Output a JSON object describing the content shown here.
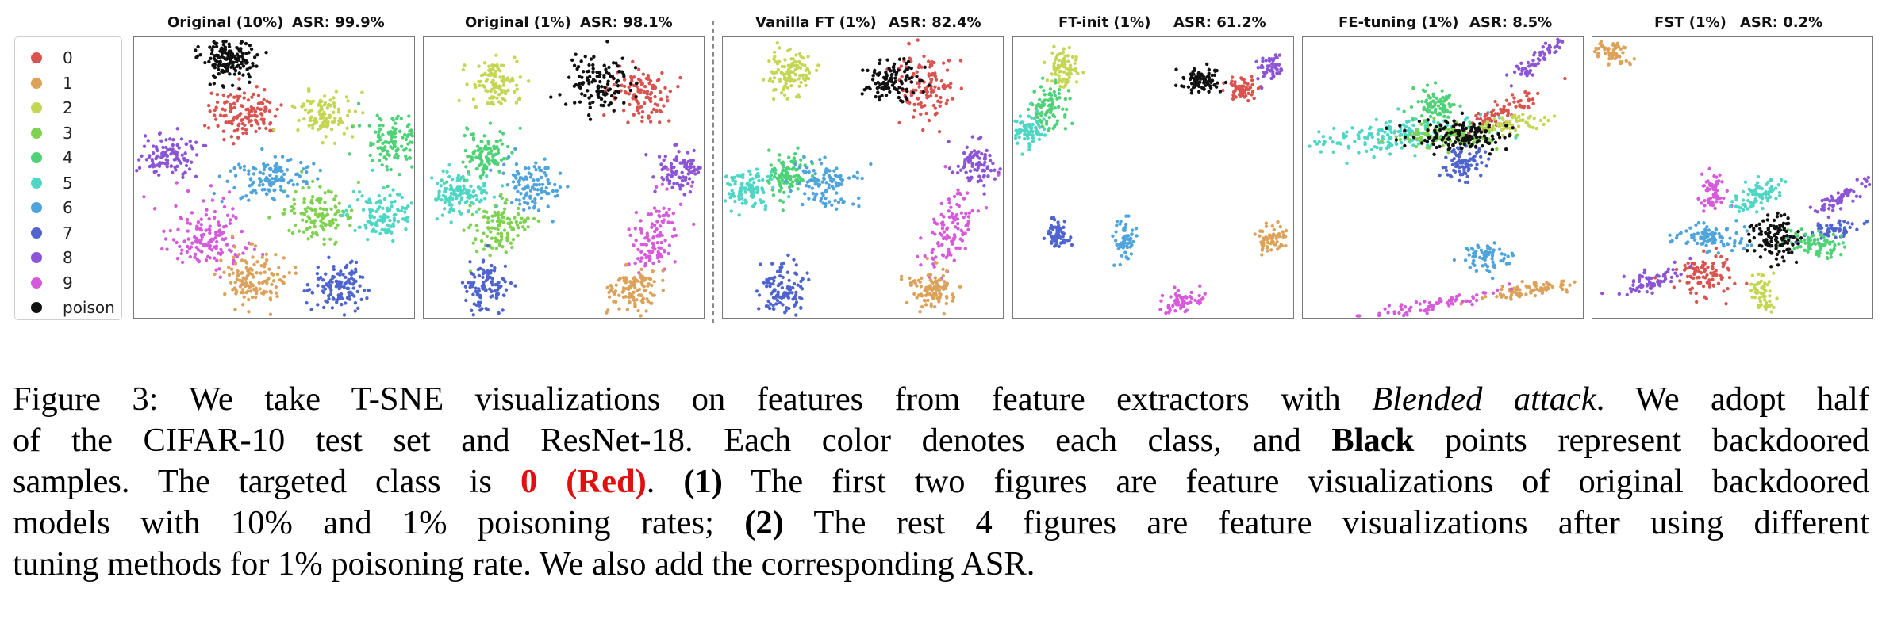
{
  "legend": {
    "items": [
      {
        "label": "0",
        "color": "#d9534f"
      },
      {
        "label": "1",
        "color": "#dca25a"
      },
      {
        "label": "2",
        "color": "#c5d654"
      },
      {
        "label": "3",
        "color": "#7fd24f"
      },
      {
        "label": "4",
        "color": "#4fd277"
      },
      {
        "label": "5",
        "color": "#4fd6c5"
      },
      {
        "label": "6",
        "color": "#4fa4dc"
      },
      {
        "label": "7",
        "color": "#4f64cf"
      },
      {
        "label": "8",
        "color": "#8c55d6"
      },
      {
        "label": "9",
        "color": "#d65ad9"
      },
      {
        "label": "poison",
        "color": "#111111"
      }
    ]
  },
  "panels": [
    {
      "title": "Original (10%)",
      "asr": "ASR: 99.9%"
    },
    {
      "title": "Original (1%)",
      "asr": "ASR: 98.1%"
    },
    {
      "title": "Vanilla FT (1%)",
      "asr": "ASR: 82.4%"
    },
    {
      "title": "FT-init (1%)",
      "asr": "ASR: 61.2%"
    },
    {
      "title": "FE-tuning (1%)",
      "asr": "ASR: 8.5%"
    },
    {
      "title": "FST (1%)",
      "asr": "ASR: 0.2%"
    }
  ],
  "caption": {
    "label": "Figure 3:",
    "l1a": " We take T-SNE visualizations on features from feature extractors with ",
    "l1b": "Blended attack",
    "l1c": ". We adopt half",
    "l2a": "of the CIFAR-10 test set and ResNet-18. Each color denotes each class, and ",
    "l2b": "Black",
    "l2c": " points represent backdoored",
    "l3a": "samples. The targeted class is ",
    "l3b": "0 (Red)",
    "l3c": ". ",
    "l3d": "(1)",
    "l3e": " The first two figures are feature visualizations of original backdoored",
    "l4a": "models with 10% and 1% poisoning rates; ",
    "l4b": "(2)",
    "l4c": " The rest 4 figures are feature visualizations after using different",
    "l5": "tuning methods for 1% poisoning rate. We also add the corresponding ASR."
  }
}
